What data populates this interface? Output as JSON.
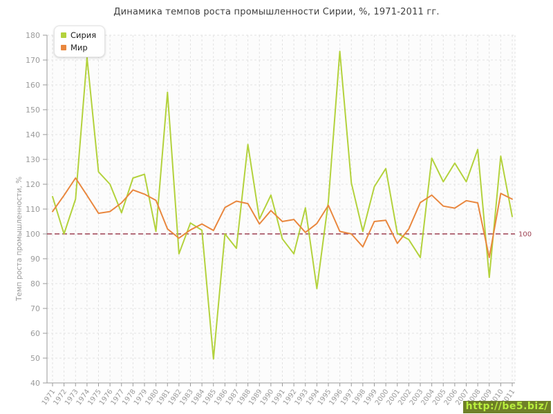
{
  "title": "Динамика темпов роста промышленности Сирии, %, 1971-2011 гг.",
  "y_axis_title": "Темп роста промышленности, %",
  "watermark": "http://be5.biz/",
  "reference_line": {
    "value": 100,
    "label": "100",
    "color": "#9c3f50"
  },
  "colors": {
    "grid": "#e2e2e2",
    "axis": "#9a9a9a",
    "tick_label": "#9a9a9a",
    "plot_background": "#fcfcfc",
    "syria": "#b3d23c",
    "world": "#e9873e"
  },
  "chart_data": {
    "type": "line",
    "title": "Динамика темпов роста промышленности Сирии, %, 1971-2011 гг.",
    "xlabel": "",
    "ylabel": "Темп роста промышленности, %",
    "ylim": [
      40,
      180
    ],
    "y_tick_step": 10,
    "grid": "dashed",
    "legend_position": "top-left",
    "x": [
      1971,
      1972,
      1973,
      1974,
      1975,
      1976,
      1977,
      1978,
      1979,
      1980,
      1981,
      1982,
      1983,
      1984,
      1985,
      1986,
      1987,
      1988,
      1989,
      1990,
      1991,
      1992,
      1993,
      1994,
      1995,
      1996,
      1997,
      1998,
      1999,
      2000,
      2001,
      2002,
      2003,
      2004,
      2005,
      2006,
      2007,
      2008,
      2009,
      2010,
      2011
    ],
    "series": [
      {
        "name": "Сирия",
        "color": "#b3d23c",
        "values": [
          115,
          100,
          114,
          171,
          125,
          120,
          108.5,
          122.5,
          124,
          101,
          157,
          92,
          104.4,
          101.5,
          49.7,
          100,
          94.2,
          136,
          106,
          115.6,
          98,
          92,
          110.5,
          78,
          113,
          173.5,
          120.5,
          101,
          119,
          126.3,
          100.2,
          97.7,
          90.5,
          130.5,
          121,
          128.5,
          121,
          134,
          82.5,
          131.3,
          107
        ]
      },
      {
        "name": "Мир",
        "color": "#e9873e",
        "values": [
          109,
          115.5,
          122.5,
          115.5,
          108.3,
          109,
          112.5,
          117.7,
          116,
          113.5,
          102,
          98.3,
          101.6,
          104,
          101.4,
          110.6,
          113.2,
          112.2,
          104,
          109.4,
          105,
          105.8,
          100.6,
          104.2,
          111.5,
          101,
          100,
          94.8,
          105,
          105.5,
          96.2,
          102,
          112.6,
          115.6,
          111.2,
          110.4,
          113.4,
          112.5,
          90.5,
          116.3,
          114
        ]
      }
    ],
    "reference_line": {
      "value": 100,
      "label": "100"
    }
  }
}
